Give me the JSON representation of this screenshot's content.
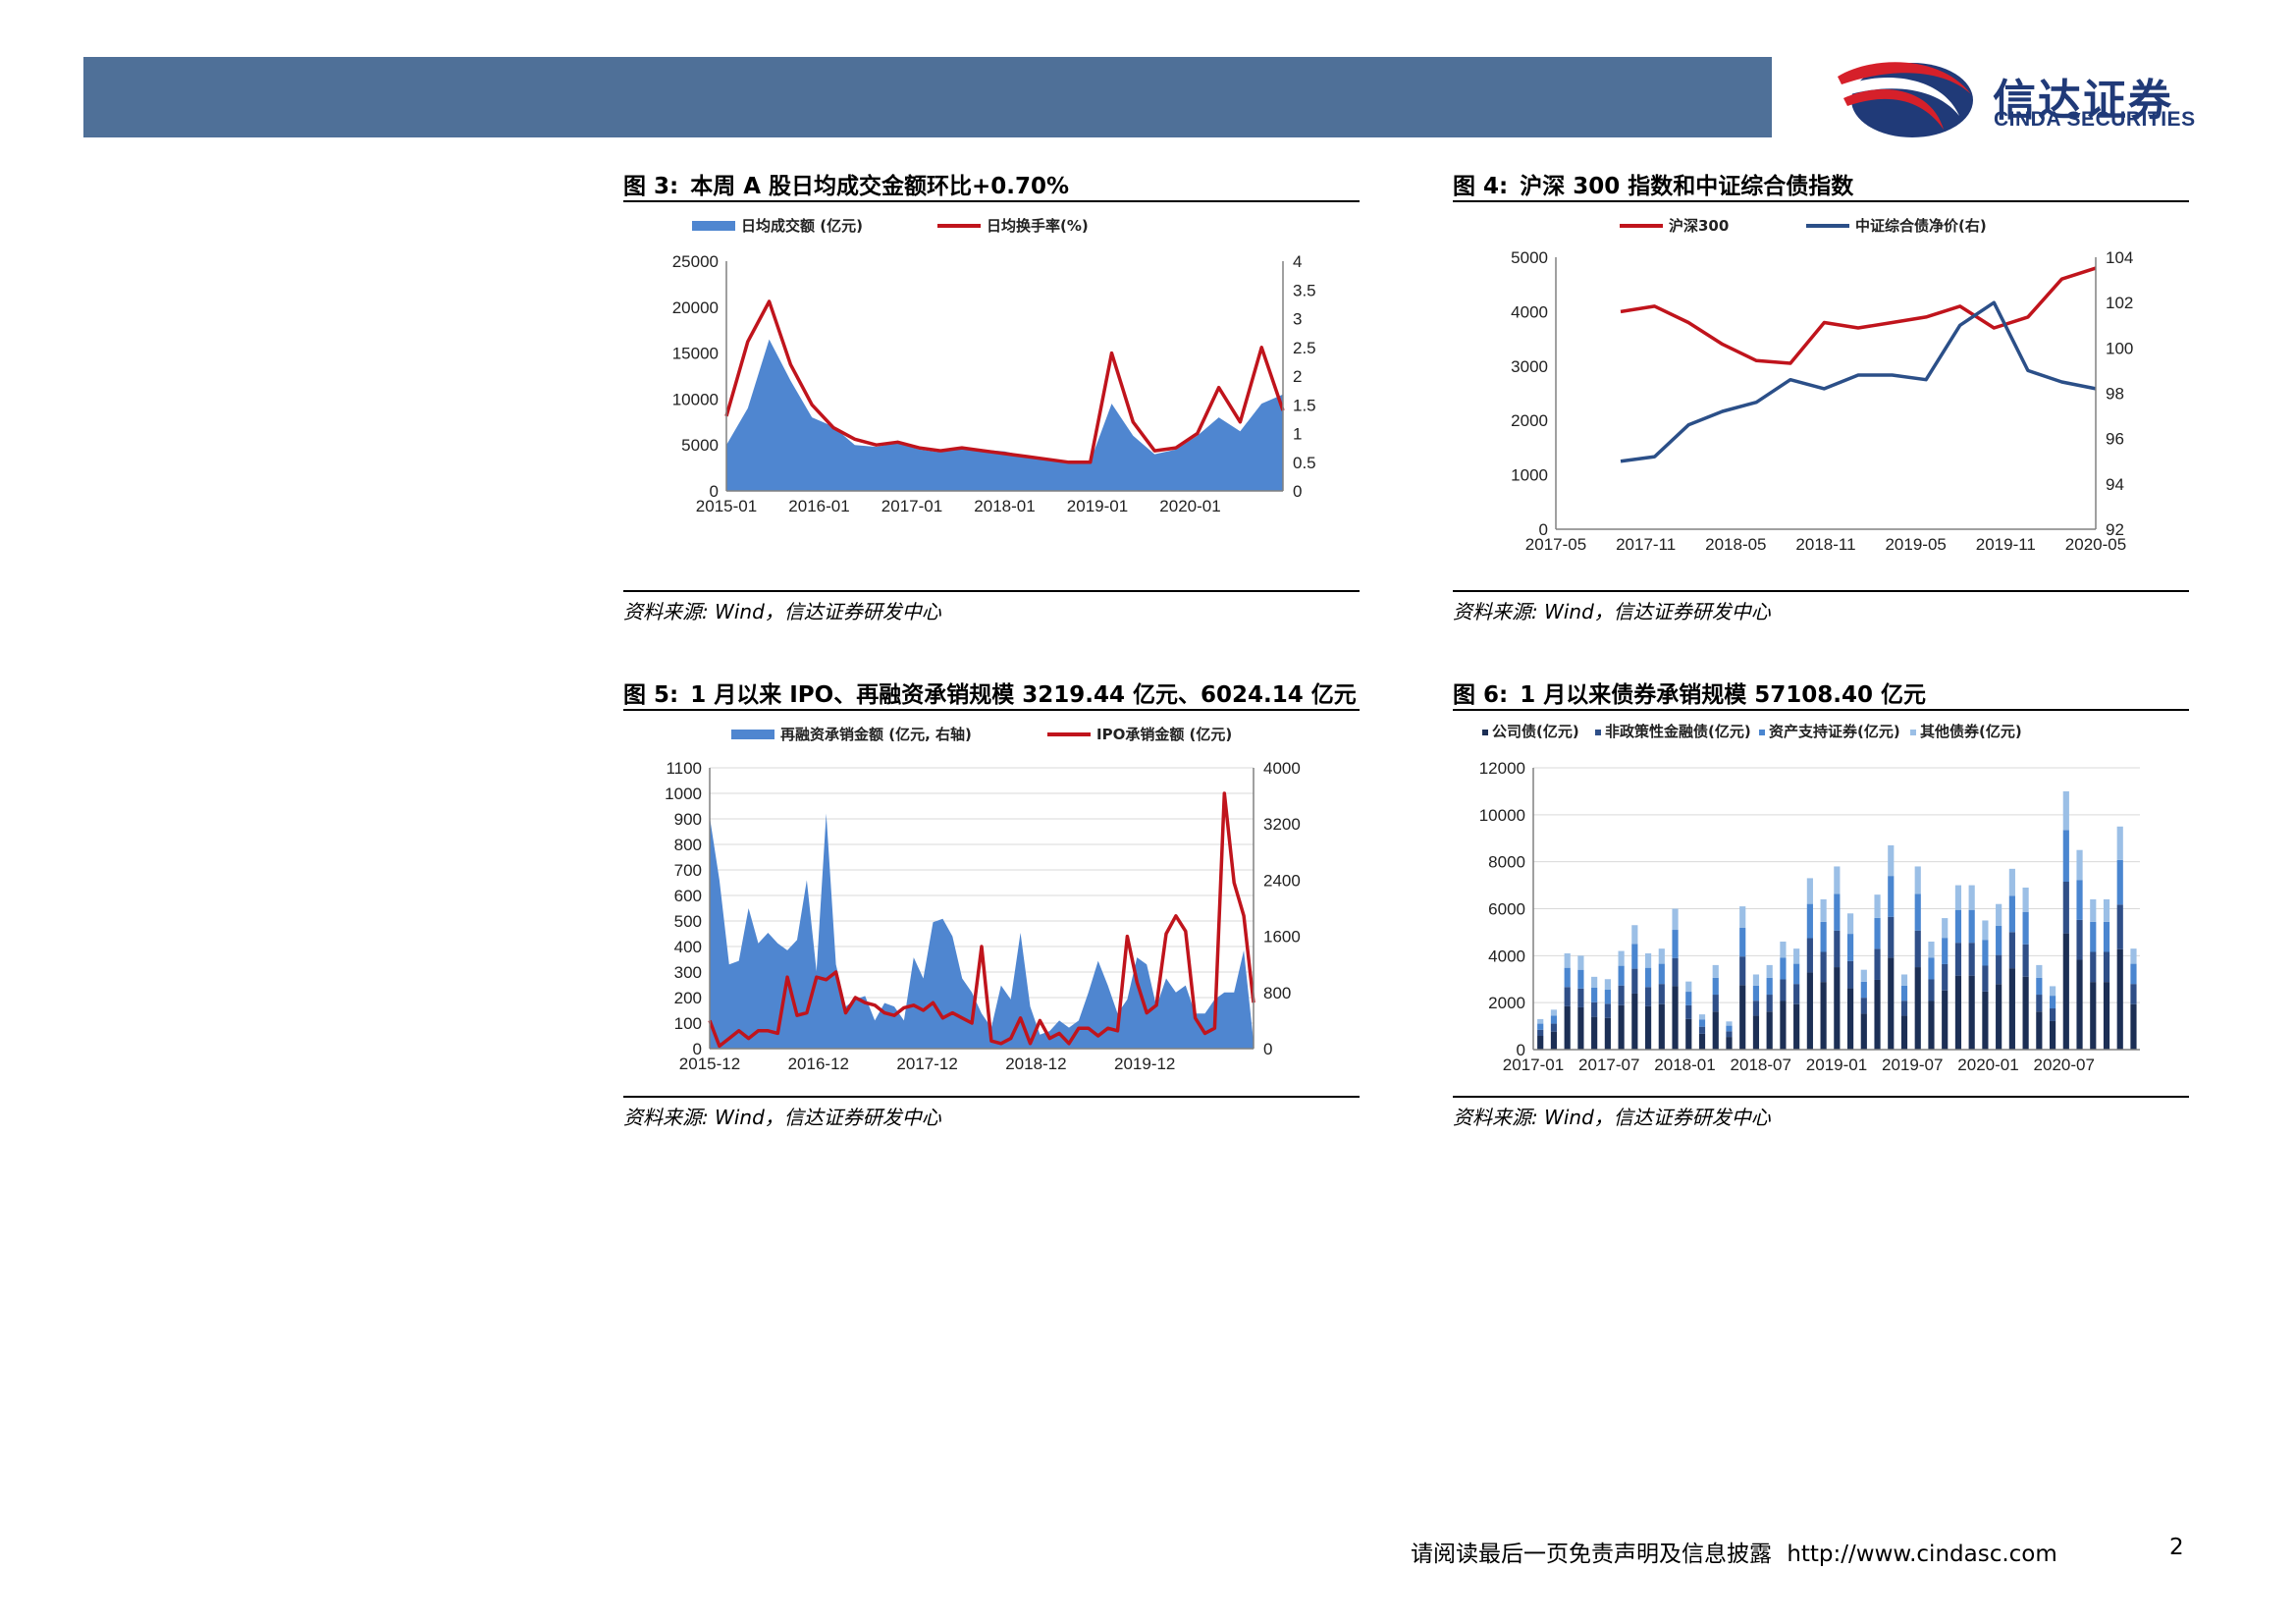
{
  "header": {
    "brand_cn": "信达证券",
    "brand_en": "CINDA SECURITIES",
    "colors": {
      "bar": "#4f7098",
      "logo_red": "#d6202a",
      "logo_navy": "#203a78"
    }
  },
  "figures": [
    {
      "num": "图 3:",
      "title": "本周 A 股日均成交金额环比+0.70%",
      "source": "资料来源: Wind，信达证券研发中心"
    },
    {
      "num": "图 4:",
      "title": "沪深 300 指数和中证综合债指数",
      "source": "资料来源: Wind，信达证券研发中心"
    },
    {
      "num": "图 5:",
      "title": "1 月以来 IPO、再融资承销规模 3219.44 亿元、6024.14 亿元",
      "source": "资料来源: Wind，信达证券研发中心"
    },
    {
      "num": "图 6:",
      "title": "1 月以来债券承销规模 57108.40 亿元",
      "source": "资料来源: Wind，信达证券研发中心"
    }
  ],
  "footer": {
    "disclaimer": "请阅读最后一页免责声明及信息披露",
    "url": "http://www.cindasc.com",
    "page": "2"
  },
  "chart_data": [
    {
      "type": "area",
      "title": "",
      "x": [
        "2015-01",
        "2015-04",
        "2015-06",
        "2015-08",
        "2015-10",
        "2016-01",
        "2016-04",
        "2016-07",
        "2016-10",
        "2017-01",
        "2017-04",
        "2017-07",
        "2017-10",
        "2018-01",
        "2018-04",
        "2018-07",
        "2018-10",
        "2019-01",
        "2019-02",
        "2019-04",
        "2019-07",
        "2019-10",
        "2020-01",
        "2020-03",
        "2020-05",
        "2020-07",
        "2020-08"
      ],
      "x_ticks": [
        "2015-01",
        "2016-01",
        "2017-01",
        "2018-01",
        "2019-01",
        "2020-01"
      ],
      "series": [
        {
          "name": "日均成交额 (亿元)",
          "axis": "left",
          "color": "#4f86d0",
          "values": [
            5000,
            9000,
            16500,
            12000,
            8000,
            7000,
            5000,
            4800,
            5200,
            4500,
            4200,
            4600,
            4500,
            4300,
            3800,
            3400,
            3200,
            3200,
            9500,
            6000,
            4000,
            4500,
            6000,
            8000,
            6500,
            9500,
            10500
          ]
        },
        {
          "name": "日均换手率(%)",
          "axis": "right",
          "color": "#c0141c",
          "values": [
            1.3,
            2.6,
            3.3,
            2.2,
            1.5,
            1.1,
            0.9,
            0.8,
            0.85,
            0.75,
            0.7,
            0.75,
            0.7,
            0.65,
            0.6,
            0.55,
            0.5,
            0.5,
            2.4,
            1.2,
            0.7,
            0.75,
            1.0,
            1.8,
            1.2,
            2.5,
            1.4
          ]
        }
      ],
      "y_left": {
        "min": 0,
        "max": 25000,
        "ticks": [
          0,
          5000,
          10000,
          15000,
          20000,
          25000
        ]
      },
      "y_right": {
        "min": 0,
        "max": 4,
        "ticks": [
          0,
          0.5,
          1,
          1.5,
          2,
          2.5,
          3,
          3.5,
          4
        ]
      },
      "legend": "top"
    },
    {
      "type": "line",
      "title": "",
      "x": [
        "2017-11",
        "2018-01",
        "2018-05",
        "2018-08",
        "2018-11",
        "2019-01",
        "2019-03",
        "2019-05",
        "2019-08",
        "2019-11",
        "2020-01",
        "2020-03",
        "2020-05",
        "2020-07",
        "2020-08"
      ],
      "x_ticks": [
        "2017-05",
        "2017-11",
        "2018-05",
        "2018-11",
        "2019-05",
        "2019-11",
        "2020-05"
      ],
      "series": [
        {
          "name": "沪深300",
          "axis": "left",
          "color": "#c0141c",
          "values": [
            4000,
            4100,
            3800,
            3400,
            3100,
            3050,
            3800,
            3700,
            3800,
            3900,
            4100,
            3700,
            3900,
            4600,
            4800
          ]
        },
        {
          "name": "中证综合债净价(右)",
          "axis": "right",
          "color": "#2b4f88",
          "values": [
            95.0,
            95.2,
            96.6,
            97.2,
            97.6,
            98.6,
            98.2,
            98.8,
            98.8,
            98.6,
            101.0,
            102.0,
            99.0,
            98.5,
            98.2
          ]
        }
      ],
      "y_left": {
        "min": 0,
        "max": 5000,
        "ticks": [
          0,
          1000,
          2000,
          3000,
          4000,
          5000
        ]
      },
      "y_right": {
        "min": 92,
        "max": 104,
        "ticks": [
          92,
          94,
          96,
          98,
          100,
          102,
          104
        ]
      },
      "legend": "top"
    },
    {
      "type": "area",
      "title": "",
      "x": [
        "2015-12",
        "2016-01",
        "2016-02",
        "2016-03",
        "2016-04",
        "2016-05",
        "2016-06",
        "2016-07",
        "2016-08",
        "2016-09",
        "2016-10",
        "2016-11",
        "2016-12",
        "2017-01",
        "2017-02",
        "2017-03",
        "2017-04",
        "2017-05",
        "2017-06",
        "2017-07",
        "2017-08",
        "2017-09",
        "2017-10",
        "2017-11",
        "2017-12",
        "2018-01",
        "2018-02",
        "2018-03",
        "2018-04",
        "2018-05",
        "2018-06",
        "2018-07",
        "2018-08",
        "2018-09",
        "2018-10",
        "2018-11",
        "2018-12",
        "2019-01",
        "2019-02",
        "2019-03",
        "2019-04",
        "2019-05",
        "2019-06",
        "2019-07",
        "2019-08",
        "2019-09",
        "2019-10",
        "2019-11",
        "2019-12",
        "2020-01",
        "2020-02",
        "2020-03",
        "2020-04",
        "2020-05",
        "2020-06",
        "2020-07",
        "2020-08"
      ],
      "x_ticks": [
        "2015-12",
        "2016-12",
        "2017-12",
        "2018-12",
        "2019-12"
      ],
      "series": [
        {
          "name": "再融资承销金额 (亿元, 右轴)",
          "axis": "right",
          "color": "#4f86d0",
          "values": [
            3300,
            2400,
            1200,
            1250,
            2000,
            1500,
            1650,
            1500,
            1400,
            1550,
            2400,
            1100,
            3350,
            1200,
            600,
            700,
            750,
            400,
            650,
            600,
            400,
            1300,
            1000,
            1800,
            1850,
            1600,
            1000,
            800,
            500,
            300,
            900,
            700,
            1650,
            600,
            200,
            250,
            400,
            300,
            400,
            800,
            1250,
            900,
            500,
            700,
            1300,
            1200,
            600,
            1000,
            800,
            900,
            500,
            500,
            700,
            800,
            800,
            1400,
            100
          ]
        },
        {
          "name": "IPO承销金额 (亿元)",
          "axis": "left",
          "color": "#c0141c",
          "values": [
            110,
            10,
            40,
            70,
            40,
            70,
            70,
            60,
            280,
            130,
            140,
            280,
            270,
            300,
            140,
            200,
            180,
            170,
            140,
            130,
            160,
            170,
            150,
            180,
            120,
            140,
            120,
            100,
            400,
            30,
            20,
            40,
            120,
            20,
            110,
            40,
            60,
            20,
            80,
            80,
            50,
            80,
            70,
            440,
            260,
            140,
            170,
            450,
            520,
            460,
            120,
            60,
            80,
            1000,
            650,
            520,
            180
          ]
        }
      ],
      "y_left": {
        "min": 0,
        "max": 1100,
        "ticks": [
          0,
          100,
          200,
          300,
          400,
          500,
          600,
          700,
          800,
          900,
          1000,
          1100
        ]
      },
      "y_right": {
        "min": 0,
        "max": 4000,
        "ticks": [
          0,
          800,
          1600,
          2400,
          3200,
          4000
        ]
      },
      "legend": "top"
    },
    {
      "type": "bar",
      "stacked": true,
      "title": "",
      "x_ticks": [
        "2017-01",
        "2017-07",
        "2018-01",
        "2018-07",
        "2019-01",
        "2019-07",
        "2020-01",
        "2020-07"
      ],
      "totals": [
        1300,
        1700,
        4100,
        4000,
        3100,
        3000,
        4200,
        5300,
        4100,
        4300,
        6000,
        2900,
        1500,
        3600,
        1200,
        6100,
        3200,
        3600,
        4600,
        4300,
        7300,
        6400,
        7800,
        5800,
        3400,
        6600,
        8700,
        3200,
        7800,
        4600,
        5600,
        7000,
        7000,
        5500,
        6200,
        7700,
        6900,
        3600,
        2700,
        11000,
        8500,
        6400,
        6400,
        9500,
        4300
      ],
      "series": [
        {
          "name": "公司债(亿元)",
          "color": "#1c2f55",
          "share": 0.45
        },
        {
          "name": "非政策性金融债(亿元)",
          "color": "#2f4f88",
          "share": 0.2
        },
        {
          "name": "资产支持证券(亿元)",
          "color": "#4a86d0",
          "share": 0.2
        },
        {
          "name": "其他债券(亿元)",
          "color": "#9bbfe6",
          "share": 0.15
        }
      ],
      "y": {
        "min": 0,
        "max": 12000,
        "ticks": [
          0,
          2000,
          4000,
          6000,
          8000,
          10000,
          12000
        ]
      },
      "legend": "top"
    }
  ]
}
